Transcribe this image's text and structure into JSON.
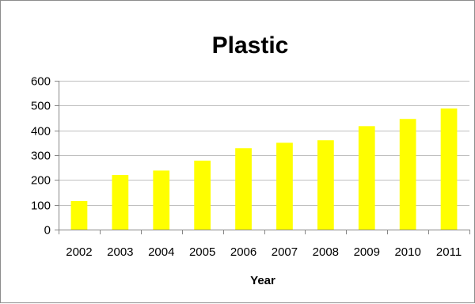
{
  "chart_data": {
    "type": "bar",
    "title": "Plastic",
    "xlabel": "Year",
    "ylabel": "",
    "categories": [
      "2002",
      "2003",
      "2004",
      "2005",
      "2006",
      "2007",
      "2008",
      "2009",
      "2010",
      "2011"
    ],
    "values": [
      115,
      220,
      238,
      278,
      328,
      350,
      360,
      417,
      446,
      488
    ],
    "ylim": [
      0,
      600
    ],
    "yticks": [
      "0",
      "100",
      "200",
      "300",
      "400",
      "500",
      "600"
    ],
    "grid": true,
    "legend": "none",
    "colors": {
      "bar": "#ffff00",
      "axis": "#868686",
      "grid": "#bfbfbf",
      "border": "#8c8c8c"
    }
  }
}
